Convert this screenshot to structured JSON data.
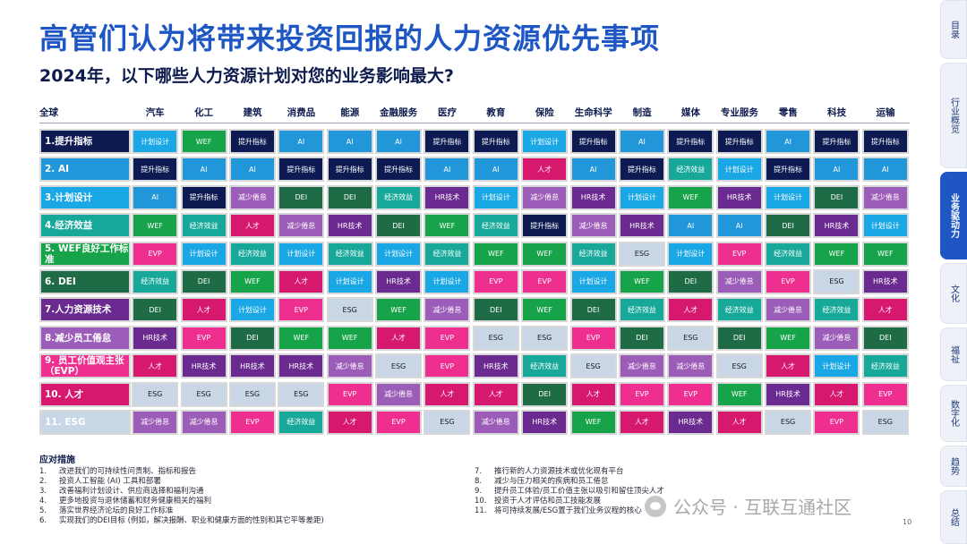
{
  "title": "高管们认为将带来投资回报的人力资源优先事项",
  "subtitle": "2024年，以下哪些人力资源计划对您的业务影响最大?",
  "corner_label": "全球",
  "colors": {
    "提升指标": "#0d1b52",
    "AI": "#2196d9",
    "计划设计": "#1aa7e6",
    "WEF": "#16a34a",
    "经济效益": "#17a89a",
    "DEI": "#1f6b45",
    "人才": "#d6186f",
    "HR技术": "#6a2a8f",
    "减少倦怠": "#9c5db8",
    "ESG": "#c8d6e6",
    "EVP": "#ee2f8f"
  },
  "industries": [
    "汽车",
    "化工",
    "建筑",
    "消费品",
    "能源",
    "金融服务",
    "医疗",
    "教育",
    "保险",
    "生命科学",
    "制造",
    "媒体",
    "专业服务",
    "零售",
    "科技",
    "运输"
  ],
  "rows": [
    {
      "label": "1.提升指标",
      "key": "提升指标",
      "cells": [
        "计划设计",
        "WEF",
        "提升指标",
        "AI",
        "AI",
        "AI",
        "提升指标",
        "提升指标",
        "计划设计",
        "提升指标",
        "AI",
        "提升指标",
        "提升指标",
        "AI",
        "提升指标",
        "提升指标"
      ]
    },
    {
      "label": "2. AI",
      "key": "AI",
      "cells": [
        "提升指标",
        "AI",
        "AI",
        "提升指标",
        "提升指标",
        "提升指标",
        "AI",
        "AI",
        "人才",
        "AI",
        "提升指标",
        "经济效益",
        "计划设计",
        "提升指标",
        "AI",
        "AI"
      ]
    },
    {
      "label": "3.计划设计",
      "key": "计划设计",
      "cells": [
        "AI",
        "提升指标",
        "减少倦怠",
        "DEI",
        "DEI",
        "经济效益",
        "HR技术",
        "计划设计",
        "减少倦怠",
        "HR技术",
        "计划设计",
        "WEF",
        "HR技术",
        "计划设计",
        "DEI",
        "减少倦怠"
      ]
    },
    {
      "label": "4.经济效益",
      "key": "经济效益",
      "cells": [
        "WEF",
        "经济效益",
        "人才",
        "减少倦怠",
        "HR技术",
        "DEI",
        "WEF",
        "经济效益",
        "提升指标",
        "减少倦怠",
        "HR技术",
        "AI",
        "AI",
        "DEI",
        "HR技术",
        "计划设计"
      ]
    },
    {
      "label": "5. WEF良好工作标准",
      "key": "WEF",
      "cells": [
        "EVP",
        "计划设计",
        "经济效益",
        "计划设计",
        "经济效益",
        "计划设计",
        "经济效益",
        "WEF",
        "WEF",
        "经济效益",
        "ESG",
        "计划设计",
        "EVP",
        "经济效益",
        "WEF",
        "WEF"
      ]
    },
    {
      "label": "6. DEI",
      "key": "DEI",
      "cells": [
        "经济效益",
        "DEI",
        "WEF",
        "人才",
        "计划设计",
        "HR技术",
        "计划设计",
        "EVP",
        "EVP",
        "计划设计",
        "WEF",
        "DEI",
        "减少倦怠",
        "EVP",
        "ESG",
        "HR技术"
      ]
    },
    {
      "label": "7.人力资源技术",
      "key": "HR技术",
      "cells": [
        "DEI",
        "人才",
        "计划设计",
        "EVP",
        "ESG",
        "WEF",
        "减少倦怠",
        "DEI",
        "WEF",
        "DEI",
        "经济效益",
        "人才",
        "经济效益",
        "减少倦怠",
        "经济效益",
        "人才"
      ]
    },
    {
      "label": "8.减少员工倦怠",
      "key": "减少倦怠",
      "cells": [
        "HR技术",
        "EVP",
        "DEI",
        "WEF",
        "WEF",
        "人才",
        "EVP",
        "ESG",
        "ESG",
        "EVP",
        "DEI",
        "ESG",
        "DEI",
        "WEF",
        "减少倦怠",
        "DEI"
      ]
    },
    {
      "label": "9. 员工价值观主张（EVP）",
      "key": "EVP",
      "cells": [
        "人才",
        "HR技术",
        "HR技术",
        "HR技术",
        "减少倦怠",
        "ESG",
        "EVP",
        "HR技术",
        "经济效益",
        "ESG",
        "减少倦怠",
        "减少倦怠",
        "ESG",
        "人才",
        "计划设计",
        "经济效益"
      ]
    },
    {
      "label": "10. 人才",
      "key": "人才",
      "cells": [
        "ESG",
        "ESG",
        "ESG",
        "ESG",
        "EVP",
        "减少倦怠",
        "人才",
        "人才",
        "DEI",
        "人才",
        "EVP",
        "EVP",
        "WEF",
        "HR技术",
        "人才",
        "EVP"
      ]
    },
    {
      "label": "11. ESG",
      "key": "ESG",
      "cells": [
        "减少倦怠",
        "减少倦怠",
        "EVP",
        "经济效益",
        "人才",
        "EVP",
        "ESG",
        "减少倦怠",
        "HR技术",
        "WEF",
        "人才",
        "HR技术",
        "人才",
        "ESG",
        "EVP",
        "ESG"
      ]
    }
  ],
  "actions_title": "应对措施",
  "actions_left": [
    {
      "n": "1.",
      "text": "改进我们的可持续性问责制、指标和报告"
    },
    {
      "n": "2.",
      "text": "投资人工智能 (AI) 工具和部署"
    },
    {
      "n": "3.",
      "text": "改善福利计划设计、供应商选择和福利沟通"
    },
    {
      "n": "4.",
      "text": "更多地投资与退休储蓄和财务健康相关的福利"
    },
    {
      "n": "5.",
      "text": "落实世界经济论坛的良好工作标准"
    },
    {
      "n": "6.",
      "text": "实现我们的DEI目标 (例如，解决报酬、职业和健康方面的性别和其它平等差距)"
    }
  ],
  "actions_right": [
    {
      "n": "7.",
      "text": "推行新的人力资源技术或优化现有平台"
    },
    {
      "n": "8.",
      "text": "减少与压力相关的疾病和员工倦怠"
    },
    {
      "n": "9.",
      "text": "提升员工体验/员工价值主张以吸引和留住顶尖人才"
    },
    {
      "n": "10.",
      "text": "投资于人才评估和员工技能发展"
    },
    {
      "n": "11.",
      "text": "将可持续发展/ESG置于我们业务议程的核心"
    }
  ],
  "watermark": "公众号 · 互联互通社区",
  "page_number": "10",
  "side_tabs": [
    "目录",
    "行业概览",
    "业务驱动力",
    "文化",
    "福祉",
    "数字化",
    "趋势",
    "总结"
  ],
  "active_tab": "业务驱动力"
}
